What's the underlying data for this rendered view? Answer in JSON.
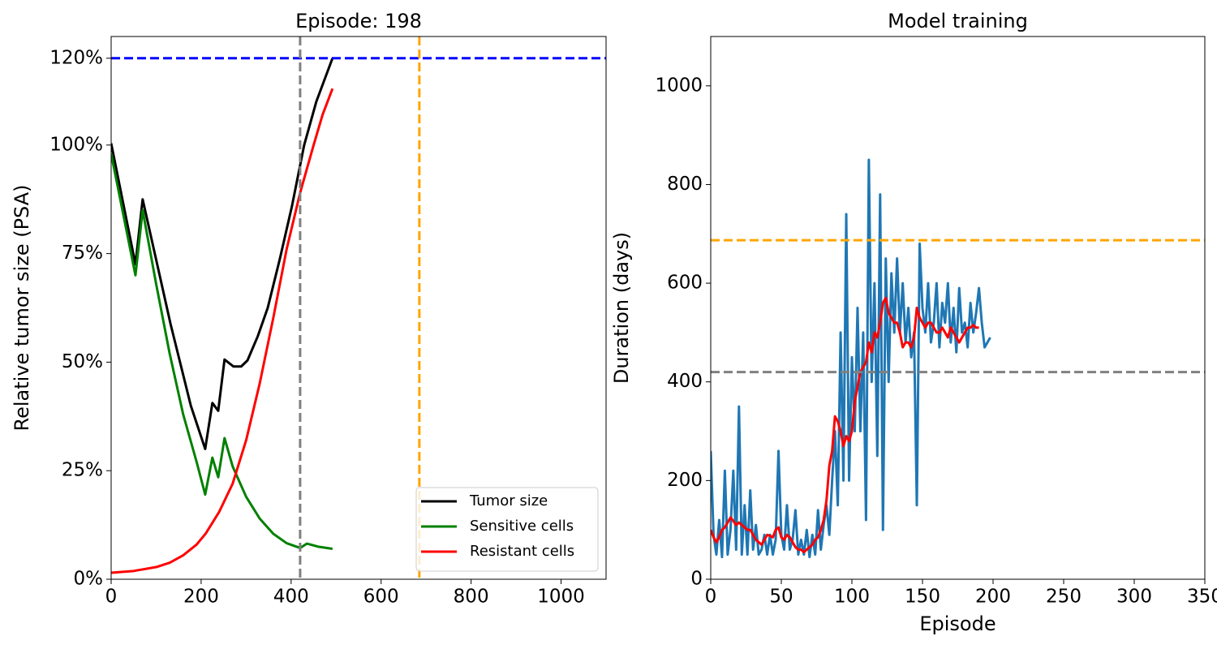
{
  "chart_data": [
    {
      "type": "line",
      "title": "Episode: 198",
      "ylabel": "Relative tumor size (PSA)",
      "xlim": [
        0,
        1100
      ],
      "xticks": [
        0,
        200,
        400,
        600,
        800,
        1000
      ],
      "ylim": [
        0,
        125
      ],
      "yticks": [
        {
          "value": 0,
          "label": "0%"
        },
        {
          "value": 25,
          "label": "25%"
        },
        {
          "value": 50,
          "label": "50%"
        },
        {
          "value": 75,
          "label": "75%"
        },
        {
          "value": 100,
          "label": "100%"
        },
        {
          "value": 120,
          "label": "120%"
        }
      ],
      "legend": "lower right",
      "reference_lines": [
        {
          "axis": "y",
          "value": 120,
          "color": "#0000ff"
        },
        {
          "axis": "x",
          "value": 420,
          "color": "#808080"
        },
        {
          "axis": "x",
          "value": 685,
          "color": "#ffa500"
        }
      ],
      "series": [
        {
          "name": "Tumor size",
          "color": "#000000",
          "x": [
            0,
            54,
            70,
            132,
            177,
            209,
            225,
            238,
            252,
            272,
            289,
            303,
            326,
            348,
            375,
            402,
            429,
            456,
            492
          ],
          "values": [
            100.4,
            72.5,
            87.5,
            58.8,
            40,
            30,
            40.6,
            38.8,
            50.6,
            49,
            49,
            50.4,
            56,
            62.5,
            73.8,
            86,
            100,
            110,
            120
          ]
        },
        {
          "name": "Sensitive cells",
          "color": "#008000",
          "x": [
            0,
            54,
            70,
            100,
            130,
            160,
            190,
            209,
            225,
            238,
            252,
            270,
            300,
            330,
            360,
            390,
            420,
            435,
            460,
            492
          ],
          "values": [
            98,
            70,
            85,
            68,
            52,
            38,
            27,
            19.5,
            28,
            23.5,
            32.5,
            26,
            19,
            14,
            10.5,
            8.3,
            7.2,
            8.2,
            7.5,
            7
          ]
        },
        {
          "name": "Resistant cells",
          "color": "#ff0000",
          "x": [
            0,
            50,
            100,
            130,
            160,
            190,
            210,
            240,
            270,
            300,
            330,
            360,
            390,
            420,
            450,
            470,
            492
          ],
          "values": [
            1.5,
            1.9,
            2.8,
            3.8,
            5.5,
            8,
            10.5,
            15.5,
            22,
            32,
            45,
            60,
            76,
            89,
            100,
            107,
            113
          ]
        }
      ]
    },
    {
      "type": "line",
      "title": "Model training",
      "xlabel": "Episode",
      "ylabel": "Duration (days)",
      "xlim": [
        0,
        350
      ],
      "xticks": [
        0,
        50,
        100,
        150,
        200,
        250,
        300,
        350
      ],
      "ylim": [
        0,
        1100
      ],
      "yticks": [
        0,
        200,
        400,
        600,
        800,
        1000
      ],
      "reference_lines": [
        {
          "axis": "y",
          "value": 420,
          "color": "#808080"
        },
        {
          "axis": "y",
          "value": 687,
          "color": "#ffa500"
        }
      ],
      "x": [
        0,
        2,
        4,
        6,
        8,
        10,
        12,
        14,
        16,
        18,
        20,
        22,
        24,
        26,
        28,
        30,
        32,
        34,
        36,
        38,
        40,
        42,
        44,
        46,
        48,
        50,
        52,
        54,
        56,
        58,
        60,
        62,
        64,
        66,
        68,
        70,
        72,
        74,
        76,
        78,
        80,
        82,
        84,
        86,
        88,
        90,
        92,
        94,
        96,
        98,
        100,
        102,
        104,
        106,
        108,
        110,
        112,
        114,
        116,
        118,
        120,
        122,
        124,
        126,
        128,
        130,
        132,
        134,
        136,
        138,
        140,
        142,
        144,
        146,
        148,
        150,
        152,
        154,
        156,
        158,
        160,
        162,
        164,
        166,
        168,
        170,
        172,
        174,
        176,
        178,
        180,
        182,
        184,
        186,
        188,
        190,
        192,
        194,
        196,
        198
      ],
      "series": [
        {
          "color": "#1f77b4",
          "values": [
            260,
            90,
            50,
            120,
            45,
            220,
            50,
            100,
            220,
            60,
            350,
            50,
            150,
            50,
            180,
            60,
            110,
            50,
            60,
            90,
            50,
            90,
            50,
            80,
            260,
            90,
            60,
            150,
            60,
            80,
            140,
            50,
            80,
            50,
            100,
            45,
            90,
            50,
            140,
            60,
            110,
            150,
            90,
            200,
            300,
            150,
            500,
            200,
            740,
            200,
            450,
            300,
            550,
            300,
            500,
            120,
            850,
            400,
            600,
            250,
            780,
            100,
            650,
            400,
            620,
            500,
            650,
            500,
            600,
            480,
            550,
            450,
            500,
            150,
            680,
            550,
            500,
            600,
            480,
            520,
            600,
            470,
            560,
            520,
            600,
            480,
            550,
            460,
            590,
            500,
            520,
            470,
            560,
            500,
            540,
            590,
            520,
            470,
            480,
            490
          ]
        },
        {
          "color": "#ff0000",
          "values": [
            100,
            85,
            75,
            85,
            100,
            105,
            115,
            125,
            118,
            110,
            115,
            110,
            105,
            100,
            100,
            90,
            80,
            75,
            70,
            80,
            90,
            88,
            85,
            100,
            105,
            85,
            80,
            90,
            85,
            75,
            65,
            60,
            60,
            55,
            60,
            65,
            70,
            80,
            85,
            100,
            120,
            160,
            230,
            260,
            330,
            320,
            300,
            270,
            290,
            280,
            300,
            360,
            390,
            420,
            430,
            440,
            480,
            460,
            500,
            490,
            520,
            560,
            570,
            540,
            530,
            520,
            520,
            500,
            470,
            480,
            480,
            470,
            490,
            550,
            530,
            520,
            510,
            520,
            520,
            510,
            500,
            500,
            510,
            500,
            490,
            510,
            500,
            490,
            480,
            490,
            500,
            510,
            510,
            515,
            510,
            510,
            null,
            null,
            null,
            null
          ]
        }
      ]
    }
  ]
}
